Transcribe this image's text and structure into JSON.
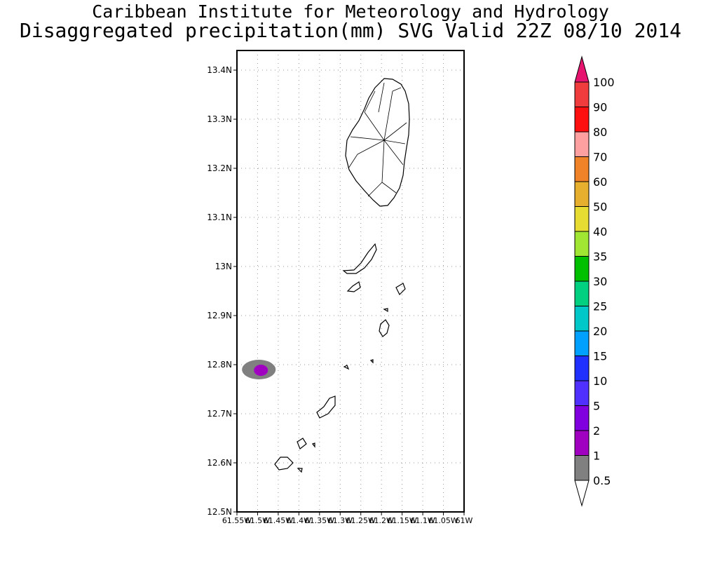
{
  "title": {
    "line1": "Caribbean Institute for Meteorology and Hydrology",
    "line2": "Disaggregated precipitation(mm) SVG Valid 22Z 08/10 2014"
  },
  "map": {
    "lat_labels": [
      "13.4N",
      "13.3N",
      "13.2N",
      "13.1N",
      "13N",
      "12.9N",
      "12.8N",
      "12.7N",
      "12.6N",
      "12.5N"
    ],
    "lon_labels": [
      "61.55W",
      "61.5W",
      "61.45W",
      "61.4W",
      "61.35W",
      "61.3W",
      "61.25W",
      "61.2W",
      "61.15W",
      "61.1W",
      "61.05W",
      "61W"
    ],
    "lat_range": [
      12.5,
      13.44
    ],
    "lon_range": [
      -61.55,
      -61.0
    ],
    "precip_feature": {
      "lon": -61.497,
      "lat": 12.79,
      "levels": [
        "0.5",
        "2"
      ]
    }
  },
  "colorbar": {
    "labels": [
      "0.5",
      "1",
      "2",
      "5",
      "10",
      "15",
      "20",
      "25",
      "30",
      "35",
      "40",
      "50",
      "60",
      "70",
      "80",
      "90",
      "100"
    ],
    "colors": [
      "#808080",
      "#a000c0",
      "#8000e0",
      "#5030ff",
      "#2030ff",
      "#00a0ff",
      "#00c8c8",
      "#00d080",
      "#00c000",
      "#a0e632",
      "#e6dc32",
      "#e6af2d",
      "#f08228",
      "#ffa0a0",
      "#ff1010",
      "#f03c3c"
    ],
    "over_color": "#e6146e",
    "under_color": "#ffffff"
  }
}
